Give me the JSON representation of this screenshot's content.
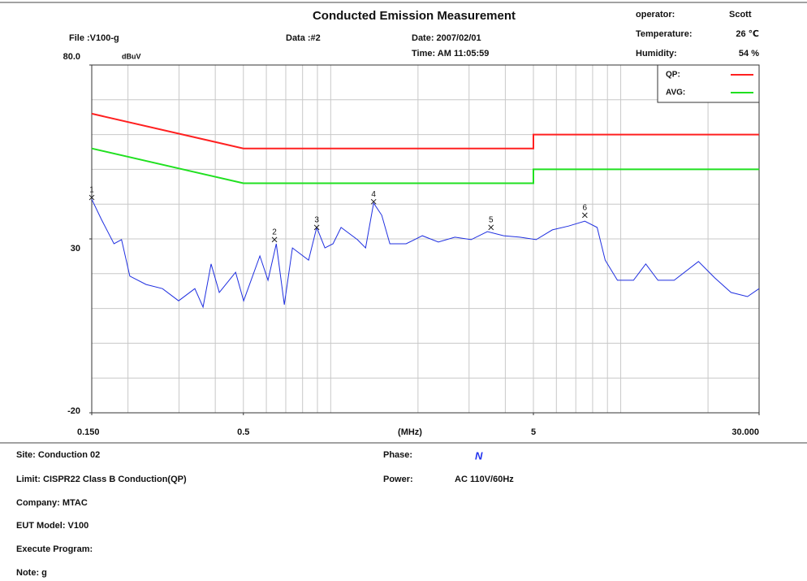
{
  "chart_data": {
    "type": "line",
    "title": "Conducted Emission Measurement",
    "ylabel": "dBuV",
    "xlabel": "(MHz)",
    "xscale": "log",
    "grid": true,
    "legend": "top-right",
    "xlim": [
      0.15,
      30
    ],
    "xticks": [
      {
        "value": 0.15,
        "label": "0.150"
      },
      0.5,
      5,
      {
        "value": 30,
        "label": "30.000"
      }
    ],
    "xgrid": [
      0.2,
      0.3,
      0.4,
      0.5,
      0.6,
      0.7,
      0.8,
      0.9,
      1,
      2,
      3,
      4,
      5,
      6,
      7,
      8,
      9,
      10,
      20
    ],
    "ylim": [
      -20,
      80
    ],
    "yticks": [
      {
        "value": 80,
        "label": "80.0"
      },
      30,
      -20
    ],
    "ygrid": [
      70,
      60,
      50,
      40,
      30,
      20,
      10,
      0,
      -10
    ],
    "series": [
      {
        "name": "QP:",
        "color": "#ff2020",
        "x": [
          0.15,
          0.5,
          5,
          5,
          30
        ],
        "values": [
          66,
          56,
          56,
          60,
          60
        ]
      },
      {
        "name": "AVG:",
        "color": "#20e020",
        "x": [
          0.15,
          0.5,
          5,
          5,
          30
        ],
        "values": [
          56,
          46,
          46,
          50,
          50
        ]
      }
    ],
    "trace": {
      "color": "#1f2fe0",
      "x": [
        0.15,
        0.162,
        0.179,
        0.19,
        0.203,
        0.231,
        0.263,
        0.299,
        0.34,
        0.363,
        0.387,
        0.413,
        0.47,
        0.501,
        0.57,
        0.608,
        0.649,
        0.692,
        0.738,
        0.839,
        0.895,
        0.955,
        1.019,
        1.086,
        1.236,
        1.319,
        1.406,
        1.5,
        1.6,
        1.82,
        2.07,
        2.35,
        2.68,
        3.05,
        3.47,
        3.95,
        4.49,
        5.11,
        5.81,
        6.61,
        7.52,
        8.29,
        8.84,
        9.74,
        11.07,
        12.2,
        13.44,
        15.29,
        18.54,
        21.09,
        24,
        27.35,
        30
      ],
      "values": [
        41.4,
        35.6,
        28.6,
        29.8,
        19.3,
        16.9,
        15.7,
        12.2,
        15.7,
        10.4,
        22.8,
        14.6,
        20.4,
        12.2,
        25.1,
        18.1,
        28.6,
        11.1,
        27.4,
        23.9,
        33.3,
        27.4,
        28.6,
        33.3,
        29.8,
        27.4,
        40.3,
        36.8,
        28.6,
        28.6,
        30.9,
        29.1,
        30.5,
        29.8,
        32.1,
        30.9,
        30.5,
        29.8,
        32.6,
        33.7,
        35.1,
        33.3,
        23.9,
        18.1,
        18.1,
        22.8,
        18.1,
        18.1,
        23.5,
        18.8,
        14.6,
        13.4,
        15.7
      ]
    },
    "markers": [
      {
        "label": "1",
        "x": 0.15,
        "value": 41.9
      },
      {
        "label": "2",
        "x": 0.64,
        "value": 29.8
      },
      {
        "label": "3",
        "x": 0.895,
        "value": 33.3
      },
      {
        "label": "4",
        "x": 1.406,
        "value": 40.7
      },
      {
        "label": "5",
        "x": 3.57,
        "value": 33.3
      },
      {
        "label": "6",
        "x": 7.52,
        "value": 36.8
      }
    ]
  },
  "header": {
    "file": "File :V100-g",
    "data": "Data :#2",
    "date": "Date: 2007/02/01",
    "time": "Time: AM 11:05:59",
    "operator_label": "operator:",
    "operator": "Scott",
    "temperature_label": "Temperature:",
    "temperature": "26 ℃",
    "humidity_label": "Humidity:",
    "humidity": "54 %"
  },
  "footer": {
    "site": "Site: Conduction 02",
    "phase_label": "Phase:",
    "phase": "N",
    "limit": "Limit: CISPR22 Class B Conduction(QP)",
    "power_label": "Power:",
    "power": "AC 110V/60Hz",
    "company": "Company: MTAC",
    "eut": "EUT Model: V100",
    "program": "Execute Program:",
    "note": "Note: g"
  }
}
